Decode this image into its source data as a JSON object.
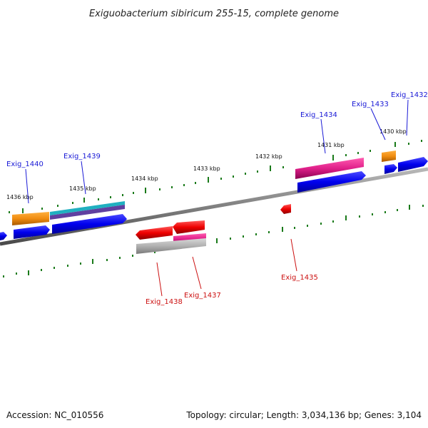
{
  "header": {
    "title": "Exiguobacterium sibiricum 255-15, complete genome"
  },
  "footer": {
    "accession": "Accession: NC_010556",
    "topology": "Topology: circular; Length: 3,034,136 bp; Genes: 3,104"
  },
  "ticks": [
    "1430 kbp",
    "1431 kbp",
    "1432 kbp",
    "1433 kbp",
    "1434 kbp",
    "1435 kbp",
    "1436 kbp"
  ],
  "genes_forward": [
    "Exig_1432",
    "Exig_1433",
    "Exig_1434",
    "Exig_1439",
    "Exig_1440"
  ],
  "genes_reverse": [
    "Exig_1435",
    "Exig_1437",
    "Exig_1438"
  ],
  "colors": {
    "backbone": "#808080",
    "tick": "#1a7a1a",
    "cds_forward": "#0000ee",
    "cds_reverse": "#ee0000",
    "orange": "#f08c10",
    "pink": "#e0208a",
    "teal": "#20b0c0",
    "purple": "#6040a0",
    "gray": "#b0b0b0"
  }
}
